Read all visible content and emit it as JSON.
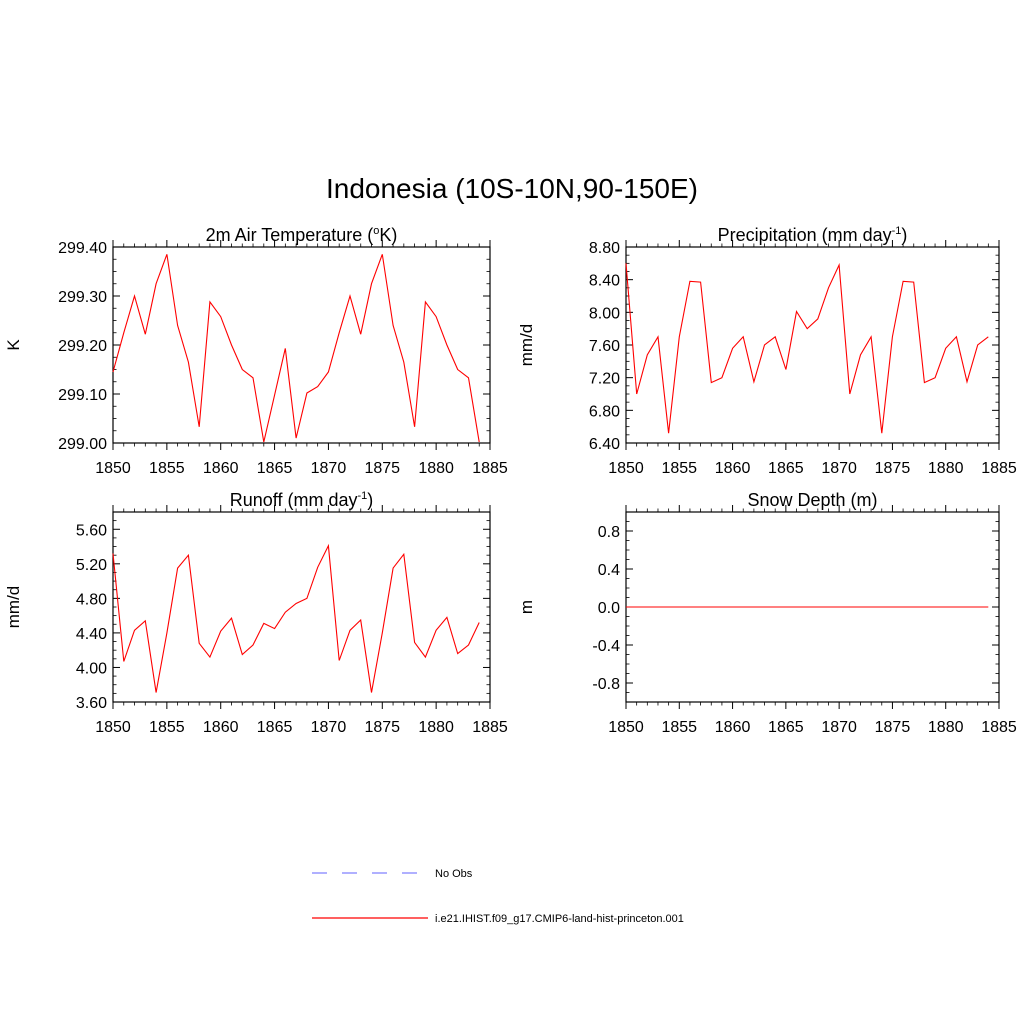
{
  "title": "Indonesia (10S-10N,90-150E)",
  "chart_data": [
    {
      "type": "line",
      "title": "2m Air Temperature (",
      "title_sup": "o",
      "title_after": "K)",
      "ylabel": "K",
      "xlim": [
        1850,
        1885
      ],
      "ylim": [
        299.0,
        299.4
      ],
      "xticks": [
        "1850",
        "1855",
        "1860",
        "1865",
        "1870",
        "1875",
        "1880",
        "1885"
      ],
      "yticks": [
        "299.00",
        "299.10",
        "299.20",
        "299.30",
        "299.40"
      ],
      "ytick_values": [
        299.0,
        299.1,
        299.2,
        299.3,
        299.4
      ],
      "series": [
        {
          "name": "i.e21.IHIST.f09_g17.CMIP6-land-hist-princeton.001",
          "color": "#ff0000",
          "x": [
            1850,
            1851,
            1852,
            1853,
            1854,
            1855,
            1856,
            1857,
            1858,
            1859,
            1860,
            1861,
            1862,
            1863,
            1864,
            1865,
            1866,
            1867,
            1868,
            1869,
            1870,
            1871,
            1872,
            1873,
            1874,
            1875,
            1876,
            1877,
            1878,
            1879,
            1880,
            1881,
            1882,
            1883,
            1884
          ],
          "y": [
            299.145,
            299.225,
            299.3,
            299.222,
            299.325,
            299.385,
            299.24,
            299.165,
            299.033,
            299.288,
            299.258,
            299.2,
            299.15,
            299.133,
            299.002,
            299.098,
            299.193,
            299.01,
            299.102,
            299.115,
            299.145,
            299.225,
            299.3,
            299.222,
            299.325,
            299.385,
            299.24,
            299.165,
            299.033,
            299.288,
            299.258,
            299.2,
            299.15,
            299.133,
            299.002
          ]
        }
      ]
    },
    {
      "type": "line",
      "title": "Precipitation (mm day",
      "title_sup": "-1",
      "title_after": ")",
      "ylabel": "mm/d",
      "xlim": [
        1850,
        1885
      ],
      "ylim": [
        6.4,
        8.8
      ],
      "xticks": [
        "1850",
        "1855",
        "1860",
        "1865",
        "1870",
        "1875",
        "1880",
        "1885"
      ],
      "yticks": [
        "6.40",
        "6.80",
        "7.20",
        "7.60",
        "8.00",
        "8.40",
        "8.80"
      ],
      "ytick_values": [
        6.4,
        6.8,
        7.2,
        7.6,
        8.0,
        8.4,
        8.8
      ],
      "series": [
        {
          "name": "i.e21.IHIST.f09_g17.CMIP6-land-hist-princeton.001",
          "color": "#ff0000",
          "x": [
            1850,
            1851,
            1852,
            1853,
            1854,
            1855,
            1856,
            1857,
            1858,
            1859,
            1860,
            1861,
            1862,
            1863,
            1864,
            1865,
            1866,
            1867,
            1868,
            1869,
            1870,
            1871,
            1872,
            1873,
            1874,
            1875,
            1876,
            1877,
            1878,
            1879,
            1880,
            1881,
            1882,
            1883,
            1884
          ],
          "y": [
            8.6,
            7.0,
            7.48,
            7.7,
            6.52,
            7.7,
            8.38,
            8.37,
            7.14,
            7.2,
            7.56,
            7.7,
            7.15,
            7.6,
            7.7,
            7.3,
            8.01,
            7.8,
            7.92,
            8.3,
            8.58,
            7.0,
            7.48,
            7.7,
            6.52,
            7.7,
            8.38,
            8.37,
            7.14,
            7.2,
            7.56,
            7.7,
            7.15,
            7.6,
            7.7
          ]
        }
      ]
    },
    {
      "type": "line",
      "title": "Runoff (mm day",
      "title_sup": "-1",
      "title_after": ")",
      "ylabel": "mm/d",
      "xlim": [
        1850,
        1885
      ],
      "ylim": [
        3.6,
        5.8
      ],
      "xticks": [
        "1850",
        "1855",
        "1860",
        "1865",
        "1870",
        "1875",
        "1880",
        "1885"
      ],
      "yticks": [
        "3.60",
        "4.00",
        "4.40",
        "4.80",
        "5.20",
        "5.60"
      ],
      "ytick_values": [
        3.6,
        4.0,
        4.4,
        4.8,
        5.2,
        5.6
      ],
      "series": [
        {
          "name": "i.e21.IHIST.f09_g17.CMIP6-land-hist-princeton.001",
          "color": "#ff0000",
          "x": [
            1850,
            1851,
            1852,
            1853,
            1854,
            1855,
            1856,
            1857,
            1858,
            1859,
            1860,
            1861,
            1862,
            1863,
            1864,
            1865,
            1866,
            1867,
            1868,
            1869,
            1870,
            1871,
            1872,
            1873,
            1874,
            1875,
            1876,
            1877,
            1878,
            1879,
            1880,
            1881,
            1882,
            1883,
            1884
          ],
          "y": [
            5.32,
            4.07,
            4.43,
            4.54,
            3.71,
            4.4,
            5.15,
            5.3,
            4.28,
            4.12,
            4.42,
            4.57,
            4.15,
            4.26,
            4.51,
            4.45,
            4.64,
            4.74,
            4.8,
            5.16,
            5.41,
            4.08,
            4.43,
            4.55,
            3.71,
            4.4,
            5.15,
            5.31,
            4.29,
            4.12,
            4.43,
            4.58,
            4.16,
            4.26,
            4.52
          ]
        }
      ]
    },
    {
      "type": "line",
      "title": "Snow Depth (m)",
      "title_sup": "",
      "title_after": "",
      "ylabel": "m",
      "xlim": [
        1850,
        1885
      ],
      "ylim": [
        -1.0,
        1.0
      ],
      "xticks": [
        "1850",
        "1855",
        "1860",
        "1865",
        "1870",
        "1875",
        "1880",
        "1885"
      ],
      "yticks": [
        "-0.8",
        "-0.4",
        "0.0",
        "0.4",
        "0.8"
      ],
      "ytick_values": [
        -0.8,
        -0.4,
        0.0,
        0.4,
        0.8
      ],
      "series": [
        {
          "name": "i.e21.IHIST.f09_g17.CMIP6-land-hist-princeton.001",
          "color": "#ff0000",
          "x": [
            1850,
            1884
          ],
          "y": [
            0.0,
            0.0
          ]
        }
      ]
    }
  ],
  "legend": {
    "placement": "bottom-center",
    "items": [
      {
        "label": "No Obs",
        "color": "#8080ff",
        "style": "dashed"
      },
      {
        "label": "i.e21.IHIST.f09_g17.CMIP6-land-hist-princeton.001",
        "color": "#ff0000",
        "style": "solid"
      }
    ]
  }
}
